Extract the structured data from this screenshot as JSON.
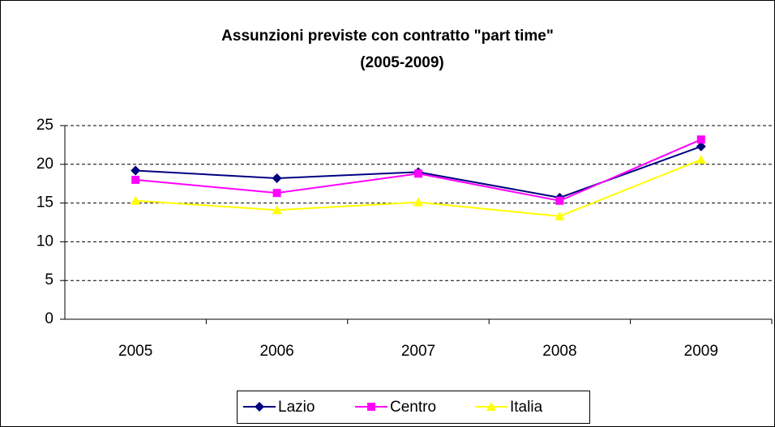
{
  "chart_data": {
    "type": "line",
    "title": "Assunzioni previste con contratto \"part time\"",
    "subtitle": "(2005-2009)",
    "categories": [
      "2005",
      "2006",
      "2007",
      "2008",
      "2009"
    ],
    "series": [
      {
        "name": "Lazio",
        "color": "#000080",
        "marker": "diamond",
        "values": [
          19.2,
          18.2,
          19.0,
          15.7,
          22.3
        ]
      },
      {
        "name": "Centro",
        "color": "#FF00FF",
        "marker": "square",
        "values": [
          18.0,
          16.3,
          18.8,
          15.3,
          23.2
        ]
      },
      {
        "name": "Italia",
        "color": "#FFFF00",
        "marker": "triangle",
        "values": [
          15.3,
          14.1,
          15.1,
          13.3,
          20.6
        ]
      }
    ],
    "ylim": [
      0,
      25
    ],
    "yticks": [
      0,
      5,
      10,
      15,
      20,
      25
    ],
    "grid": true,
    "legend": "bottom"
  }
}
